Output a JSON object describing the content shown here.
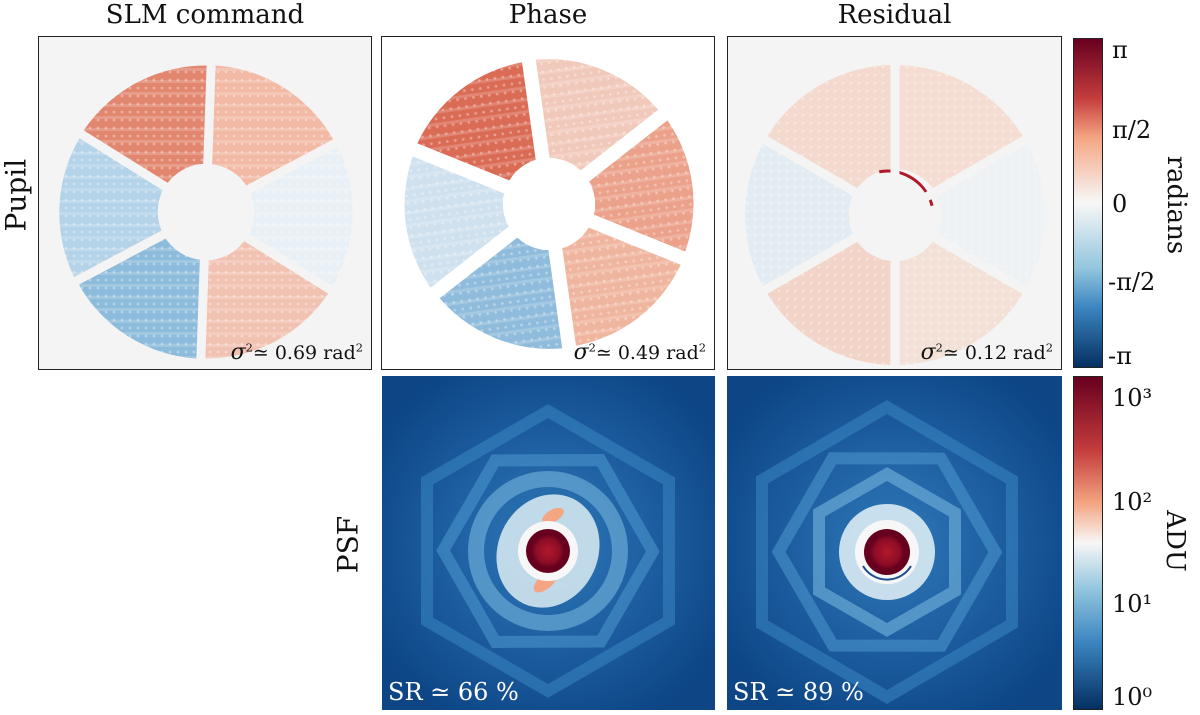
{
  "columns": {
    "slm": "SLM command",
    "phase": "Phase",
    "residual": "Residual"
  },
  "rows": {
    "pupil": "Pupil",
    "psf": "PSF"
  },
  "pupil_panels": {
    "slm": {
      "sigma_prefix": "σ",
      "sigma_approx": "≃",
      "value": "0.69",
      "unit": "rad",
      "exp": "2"
    },
    "phase": {
      "sigma_prefix": "σ",
      "sigma_approx": "≃",
      "value": "0.49",
      "unit": "rad",
      "exp": "2"
    },
    "residual": {
      "sigma_prefix": "σ",
      "sigma_approx": "≃",
      "value": "0.12",
      "unit": "rad",
      "exp": "2"
    }
  },
  "psf_panels": {
    "phase": {
      "label": "SR ≃ 66 %",
      "sr_percent": 66
    },
    "residual": {
      "label": "SR ≃ 89 %",
      "sr_percent": 89
    }
  },
  "colorbar_phase": {
    "label": "radians",
    "ticks": [
      "π",
      "π/2",
      "0",
      "-π/2",
      "-π"
    ],
    "colors": {
      "top": "#67001f",
      "upper": "#d6604d",
      "mid": "#f7f7f7",
      "lower": "#4393c3",
      "bottom": "#053061"
    }
  },
  "colorbar_psf": {
    "label": "ADU",
    "ticks": [
      "10³",
      "10²",
      "10¹",
      "10⁰"
    ]
  }
}
